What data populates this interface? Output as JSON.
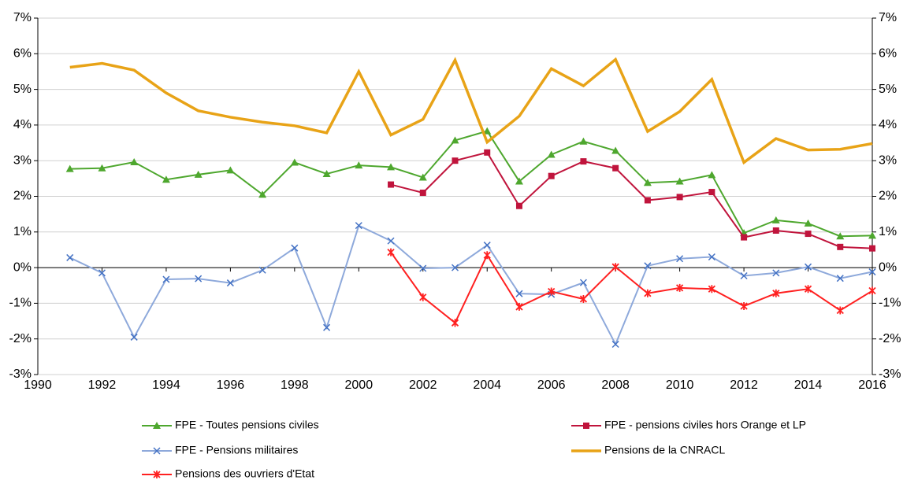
{
  "chart_data": {
    "type": "line",
    "x": [
      1991,
      1992,
      1993,
      1994,
      1995,
      1996,
      1997,
      1998,
      1999,
      2000,
      2001,
      2002,
      2003,
      2004,
      2005,
      2006,
      2007,
      2008,
      2009,
      2010,
      2011,
      2012,
      2013,
      2014,
      2015,
      2016
    ],
    "xlim": [
      1990,
      2016
    ],
    "xticks": [
      1990,
      1992,
      1994,
      1996,
      1998,
      2000,
      2002,
      2004,
      2006,
      2008,
      2010,
      2012,
      2014,
      2016
    ],
    "ylim": [
      -3,
      7
    ],
    "yticks": [
      {
        "value": -3,
        "label": "-3%"
      },
      {
        "value": -2,
        "label": "-2%"
      },
      {
        "value": -1,
        "label": "-1%"
      },
      {
        "value": 0,
        "label": "0%"
      },
      {
        "value": 1,
        "label": "1%"
      },
      {
        "value": 2,
        "label": "2%"
      },
      {
        "value": 3,
        "label": "3%"
      },
      {
        "value": 4,
        "label": "4%"
      },
      {
        "value": 5,
        "label": "5%"
      },
      {
        "value": 6,
        "label": "6%"
      },
      {
        "value": 7,
        "label": "7%"
      }
    ],
    "y2lim": [
      -3,
      7
    ],
    "y2ticks": [
      {
        "value": -3,
        "label": "-3%"
      },
      {
        "value": -2,
        "label": "-2%"
      },
      {
        "value": -1,
        "label": "-1%"
      },
      {
        "value": 0,
        "label": "0%"
      },
      {
        "value": 1,
        "label": "1%"
      },
      {
        "value": 2,
        "label": "2%"
      },
      {
        "value": 3,
        "label": "3%"
      },
      {
        "value": 4,
        "label": "4%"
      },
      {
        "value": 5,
        "label": "5%"
      },
      {
        "value": 6,
        "label": "6%"
      },
      {
        "value": 7,
        "label": "7%"
      }
    ],
    "grid": true,
    "legend": "bottom",
    "series": [
      {
        "name": "FPE - Toutes pensions civiles",
        "color": "#4ea72e",
        "marker": "triangle",
        "values": [
          2.77,
          2.79,
          2.96,
          2.47,
          2.61,
          2.73,
          2.05,
          2.95,
          2.63,
          2.87,
          2.82,
          2.53,
          3.57,
          3.83,
          2.42,
          3.17,
          3.54,
          3.28,
          2.38,
          2.42,
          2.6,
          0.97,
          1.33,
          1.24,
          0.88,
          0.9
        ]
      },
      {
        "name": "FPE - pensions civiles hors Orange et LP",
        "color": "#c0143c",
        "marker": "square",
        "values": [
          null,
          null,
          null,
          null,
          null,
          null,
          null,
          null,
          null,
          null,
          2.33,
          2.1,
          3.0,
          3.23,
          1.73,
          2.57,
          2.98,
          2.79,
          1.89,
          1.98,
          2.12,
          0.85,
          1.04,
          0.95,
          0.58,
          0.54
        ]
      },
      {
        "name": "FPE - Pensions militaires",
        "color": "#8ea9db",
        "marker": "x",
        "values": [
          0.28,
          -0.15,
          -1.95,
          -0.33,
          -0.31,
          -0.43,
          -0.07,
          0.55,
          -1.68,
          1.18,
          0.75,
          -0.02,
          0.0,
          0.63,
          -0.73,
          -0.75,
          -0.42,
          -2.15,
          0.05,
          0.25,
          0.3,
          -0.23,
          -0.15,
          0.02,
          -0.3,
          -0.12
        ]
      },
      {
        "name": "Pensions de la CNRACL",
        "color": "#e8a317",
        "marker": "none",
        "values": [
          5.62,
          5.73,
          5.54,
          4.9,
          4.4,
          4.22,
          4.08,
          3.98,
          3.78,
          5.5,
          3.72,
          4.16,
          5.82,
          3.52,
          4.25,
          5.58,
          5.1,
          5.84,
          3.82,
          4.38,
          5.28,
          2.95,
          3.62,
          3.3,
          3.32,
          3.48
        ]
      },
      {
        "name": "Pensions des ouvriers d'Etat",
        "color": "#ff2020",
        "marker": "asterisk",
        "values": [
          null,
          null,
          null,
          null,
          null,
          null,
          null,
          null,
          null,
          null,
          0.43,
          -0.83,
          -1.55,
          0.35,
          -1.1,
          -0.67,
          -0.88,
          0.02,
          -0.72,
          -0.57,
          -0.6,
          -1.08,
          -0.72,
          -0.6,
          -1.2,
          -0.65
        ]
      }
    ]
  }
}
